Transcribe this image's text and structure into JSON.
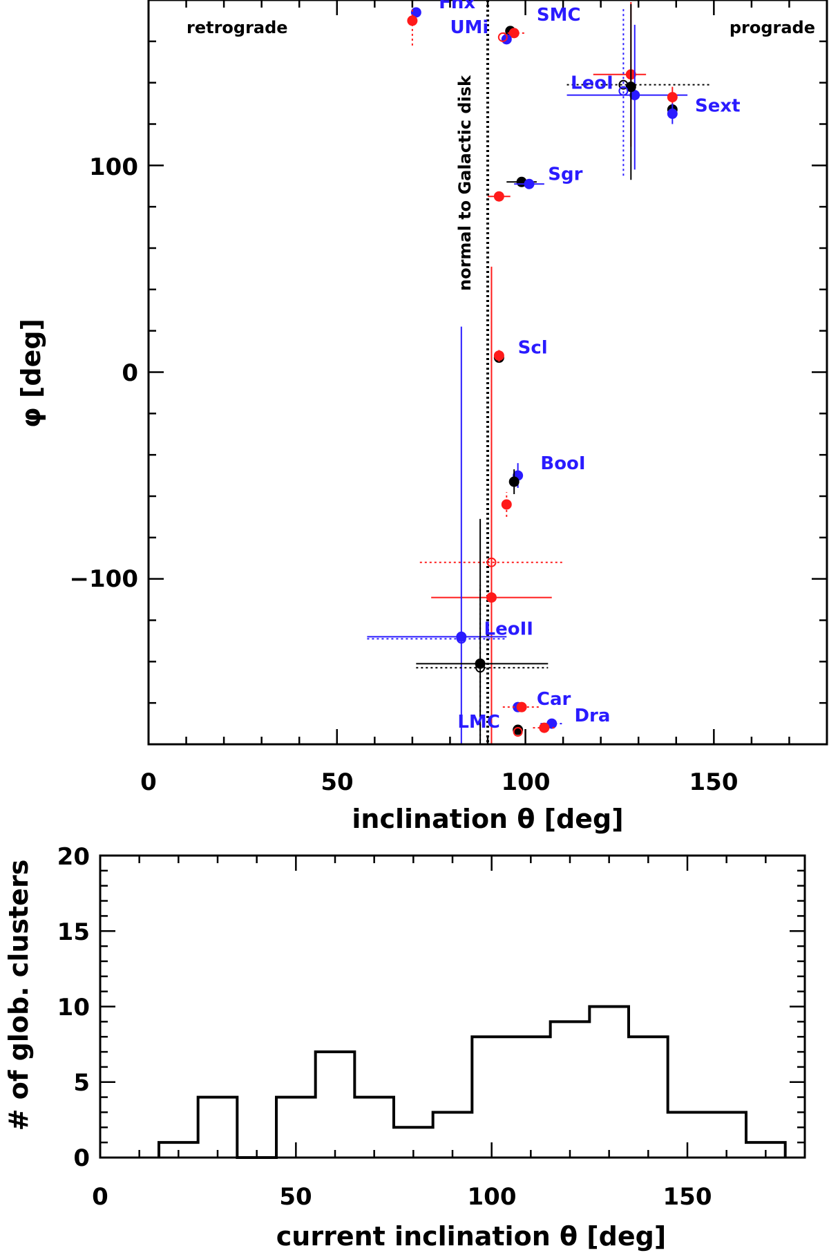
{
  "chart_data": [
    {
      "type": "scatter",
      "title": "",
      "xlabel": "inclination θ [deg]",
      "ylabel": "φ [deg]",
      "xlim": [
        0,
        180
      ],
      "ylim": [
        -180,
        180
      ],
      "x_ticks": [
        "0",
        "50",
        "100",
        "150"
      ],
      "y_ticks": [
        "−100",
        "0",
        "100"
      ],
      "grid": false,
      "annotations": {
        "left_corner": "retrograde",
        "right_corner": "prograde",
        "reference_line": "normal to Galactic disk",
        "reference_x": 90
      },
      "series": [
        {
          "name": "black",
          "color": "#000000"
        },
        {
          "name": "red",
          "color": "#ff1a1a"
        },
        {
          "name": "blue",
          "color": "#2a1bff"
        }
      ],
      "points": [
        {
          "series": "blue",
          "x": 71,
          "y": 174,
          "marker": "filled"
        },
        {
          "series": "red",
          "x": 70,
          "y": 170,
          "marker": "filled",
          "y_err": [
            12,
            12
          ],
          "style": "dotted"
        },
        {
          "series": "black",
          "x": 96,
          "y": 165,
          "marker": "filled"
        },
        {
          "series": "red",
          "x": 97,
          "y": 164,
          "marker": "filled",
          "x_err": [
            3,
            3
          ],
          "style": "dotted"
        },
        {
          "series": "blue",
          "x": 95,
          "y": 161,
          "marker": "filled"
        },
        {
          "series": "red",
          "x": 94,
          "y": 162,
          "marker": "open"
        },
        {
          "series": "red",
          "x": 128,
          "y": 144,
          "marker": "filled",
          "x_err": [
            10,
            4
          ],
          "y_err": [
            35,
            35
          ]
        },
        {
          "series": "black",
          "x": 126,
          "y": 139,
          "marker": "open",
          "x_err": [
            15,
            23
          ],
          "style": "dotted"
        },
        {
          "series": "blue",
          "x": 129,
          "y": 134,
          "marker": "filled",
          "x_err": [
            18,
            14
          ],
          "y_err": [
            36,
            34
          ]
        },
        {
          "series": "black",
          "x": 128,
          "y": 138,
          "marker": "filled",
          "y_err": [
            45,
            40
          ]
        },
        {
          "series": "blue",
          "x": 126,
          "y": 136,
          "marker": "open",
          "y_err": [
            41,
            40
          ],
          "style": "dotted"
        },
        {
          "series": "red",
          "x": 139,
          "y": 133,
          "marker": "filled",
          "y_err": [
            5,
            5
          ]
        },
        {
          "series": "black",
          "x": 139,
          "y": 127,
          "marker": "filled"
        },
        {
          "series": "blue",
          "x": 139,
          "y": 125,
          "marker": "filled",
          "y_err": [
            5,
            5
          ]
        },
        {
          "series": "black",
          "x": 99,
          "y": 92,
          "marker": "filled",
          "x_err": [
            4,
            4
          ]
        },
        {
          "series": "blue",
          "x": 101,
          "y": 91,
          "marker": "filled",
          "x_err": [
            4,
            4
          ]
        },
        {
          "series": "red",
          "x": 93,
          "y": 85,
          "marker": "filled",
          "x_err": [
            3,
            3
          ]
        },
        {
          "series": "black",
          "x": 93,
          "y": 7,
          "marker": "filled"
        },
        {
          "series": "red",
          "x": 93,
          "y": 8,
          "marker": "filled",
          "y_err": [
            3,
            3
          ],
          "style": "dotted"
        },
        {
          "series": "blue",
          "x": 98,
          "y": -50,
          "marker": "filled",
          "y_err": [
            6,
            6
          ]
        },
        {
          "series": "black",
          "x": 97,
          "y": -53,
          "marker": "filled",
          "y_err": [
            6,
            6
          ]
        },
        {
          "series": "red",
          "x": 95,
          "y": -64,
          "marker": "filled",
          "y_err": [
            6,
            6
          ],
          "style": "dotted"
        },
        {
          "series": "red",
          "x": 91,
          "y": -92,
          "marker": "open",
          "x_err": [
            19,
            19
          ],
          "style": "dotted"
        },
        {
          "series": "red",
          "x": 91,
          "y": -109,
          "marker": "filled",
          "x_err": [
            16,
            16
          ],
          "y_err": [
            160,
            160
          ]
        },
        {
          "series": "blue",
          "x": 83,
          "y": -128,
          "marker": "filled",
          "x_err": [
            25,
            12
          ],
          "y_err": [
            150,
            150
          ]
        },
        {
          "series": "blue",
          "x": 83,
          "y": -129,
          "marker": "open",
          "x_err": [
            25,
            12
          ],
          "style": "dotted"
        },
        {
          "series": "black",
          "x": 88,
          "y": -141,
          "marker": "filled",
          "x_err": [
            17,
            18
          ],
          "y_err": [
            70,
            70
          ]
        },
        {
          "series": "black",
          "x": 88,
          "y": -143,
          "marker": "open",
          "x_err": [
            17,
            18
          ],
          "y_err": [
            40,
            40
          ],
          "style": "dotted"
        },
        {
          "series": "blue",
          "x": 98,
          "y": -162,
          "marker": "filled"
        },
        {
          "series": "red",
          "x": 99,
          "y": -162,
          "marker": "filled",
          "x_err": [
            5,
            5
          ],
          "style": "dotted"
        },
        {
          "series": "black",
          "x": 98,
          "y": -173,
          "marker": "filled"
        },
        {
          "series": "red",
          "x": 98,
          "y": -174,
          "marker": "open"
        },
        {
          "series": "blue",
          "x": 107,
          "y": -170,
          "marker": "filled",
          "x_err": [
            3,
            3
          ],
          "style": "dotted"
        },
        {
          "series": "red",
          "x": 105,
          "y": -172,
          "marker": "filled",
          "x_err": [
            3,
            3
          ],
          "style": "dotted"
        }
      ],
      "galaxy_labels": [
        {
          "text": "Fnx",
          "x": 77,
          "y": 176
        },
        {
          "text": "UMi",
          "x": 80,
          "y": 164
        },
        {
          "text": "SMC",
          "x": 103,
          "y": 170
        },
        {
          "text": "LeoI",
          "x": 112,
          "y": 137
        },
        {
          "text": "Sext",
          "x": 145,
          "y": 126
        },
        {
          "text": "Sgr",
          "x": 106,
          "y": 93
        },
        {
          "text": "Scl",
          "x": 98,
          "y": 9
        },
        {
          "text": "BooI",
          "x": 104,
          "y": -47
        },
        {
          "text": "LeoII",
          "x": 89,
          "y": -127
        },
        {
          "text": "Car",
          "x": 103,
          "y": -161
        },
        {
          "text": "LMC",
          "x": 82,
          "y": -172
        },
        {
          "text": "Dra",
          "x": 113,
          "y": -169
        }
      ]
    },
    {
      "type": "bar",
      "style": "step-histogram",
      "title": "",
      "xlabel": "current inclination θ [deg]",
      "ylabel": "# of glob. clusters",
      "xlim": [
        0,
        180
      ],
      "ylim": [
        0,
        20
      ],
      "x_ticks": [
        "0",
        "50",
        "100",
        "150"
      ],
      "y_ticks": [
        "0",
        "5",
        "10",
        "15",
        "20"
      ],
      "bin_edges": [
        15,
        25,
        35,
        45,
        55,
        65,
        75,
        85,
        95,
        105,
        115,
        125,
        135,
        145,
        155,
        165,
        175
      ],
      "values": [
        1,
        4,
        0,
        4,
        7,
        4,
        2,
        3,
        8,
        8,
        9,
        10,
        8,
        3,
        3,
        1
      ]
    }
  ]
}
